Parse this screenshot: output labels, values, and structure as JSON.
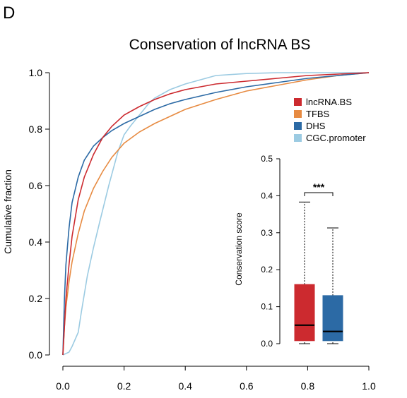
{
  "panel_letter": "D",
  "chart_data": [
    {
      "type": "line",
      "title": "Conservation of lncRNA BS",
      "xlabel": "",
      "ylabel": "Cumulative fraction",
      "xlim": [
        0.0,
        1.0
      ],
      "ylim": [
        0.0,
        1.0
      ],
      "x_ticks": [
        "0.0",
        "0.2",
        "0.4",
        "0.6",
        "0.8",
        "1.0"
      ],
      "y_ticks": [
        "0.0",
        "0.2",
        "0.4",
        "0.6",
        "0.8",
        "1.0"
      ],
      "grid": false,
      "legend_position": "top-right",
      "series": [
        {
          "name": "lncRNA.BS",
          "color": "#cc2a2f",
          "x": [
            0,
            0.005,
            0.01,
            0.02,
            0.03,
            0.05,
            0.07,
            0.1,
            0.13,
            0.16,
            0.2,
            0.25,
            0.3,
            0.35,
            0.4,
            0.5,
            0.6,
            0.7,
            0.8,
            0.9,
            1.0
          ],
          "y": [
            0,
            0.1,
            0.2,
            0.32,
            0.42,
            0.55,
            0.63,
            0.71,
            0.77,
            0.81,
            0.85,
            0.88,
            0.905,
            0.925,
            0.94,
            0.96,
            0.97,
            0.98,
            0.99,
            0.995,
            1.0
          ]
        },
        {
          "name": "TFBS",
          "color": "#e78b42",
          "x": [
            0,
            0.005,
            0.01,
            0.02,
            0.03,
            0.05,
            0.07,
            0.1,
            0.13,
            0.16,
            0.2,
            0.25,
            0.3,
            0.35,
            0.4,
            0.5,
            0.6,
            0.7,
            0.8,
            0.9,
            1.0
          ],
          "y": [
            0,
            0.1,
            0.17,
            0.26,
            0.33,
            0.43,
            0.51,
            0.59,
            0.65,
            0.7,
            0.75,
            0.79,
            0.82,
            0.845,
            0.87,
            0.905,
            0.935,
            0.955,
            0.975,
            0.99,
            1.0
          ]
        },
        {
          "name": "DHS",
          "color": "#2c6aa5",
          "x": [
            0,
            0.005,
            0.01,
            0.02,
            0.03,
            0.05,
            0.07,
            0.1,
            0.13,
            0.16,
            0.2,
            0.25,
            0.3,
            0.35,
            0.4,
            0.5,
            0.6,
            0.7,
            0.8,
            0.9,
            1.0
          ],
          "y": [
            0,
            0.2,
            0.32,
            0.45,
            0.54,
            0.63,
            0.69,
            0.74,
            0.77,
            0.795,
            0.82,
            0.845,
            0.87,
            0.89,
            0.905,
            0.93,
            0.95,
            0.965,
            0.98,
            0.99,
            1.0
          ]
        },
        {
          "name": "CGC.promoter",
          "color": "#9ccbe2",
          "x": [
            0,
            0.02,
            0.03,
            0.05,
            0.06,
            0.08,
            0.1,
            0.12,
            0.15,
            0.18,
            0.2,
            0.22,
            0.25,
            0.28,
            0.3,
            0.35,
            0.4,
            0.45,
            0.5,
            0.6,
            0.7,
            0.8,
            0.9,
            1.0
          ],
          "y": [
            0,
            0.01,
            0.03,
            0.08,
            0.15,
            0.28,
            0.38,
            0.47,
            0.6,
            0.72,
            0.78,
            0.81,
            0.85,
            0.89,
            0.91,
            0.94,
            0.96,
            0.975,
            0.99,
            0.997,
            1.0,
            1.0,
            1.0,
            1.0
          ]
        }
      ]
    },
    {
      "type": "box",
      "title": "",
      "xlabel": "",
      "ylabel": "Conservation score",
      "ylim": [
        0.0,
        0.5
      ],
      "y_ticks": [
        "0.0",
        "0.1",
        "0.2",
        "0.3",
        "0.4",
        "0.5"
      ],
      "significance": "***",
      "boxes": [
        {
          "color": "#cc2a2f",
          "whisker_low": 0.0,
          "q1": 0.008,
          "median": 0.05,
          "q3": 0.16,
          "whisker_high": 0.383
        },
        {
          "color": "#2c6aa5",
          "whisker_low": 0.0,
          "q1": 0.008,
          "median": 0.033,
          "q3": 0.13,
          "whisker_high": 0.313
        }
      ]
    }
  ]
}
